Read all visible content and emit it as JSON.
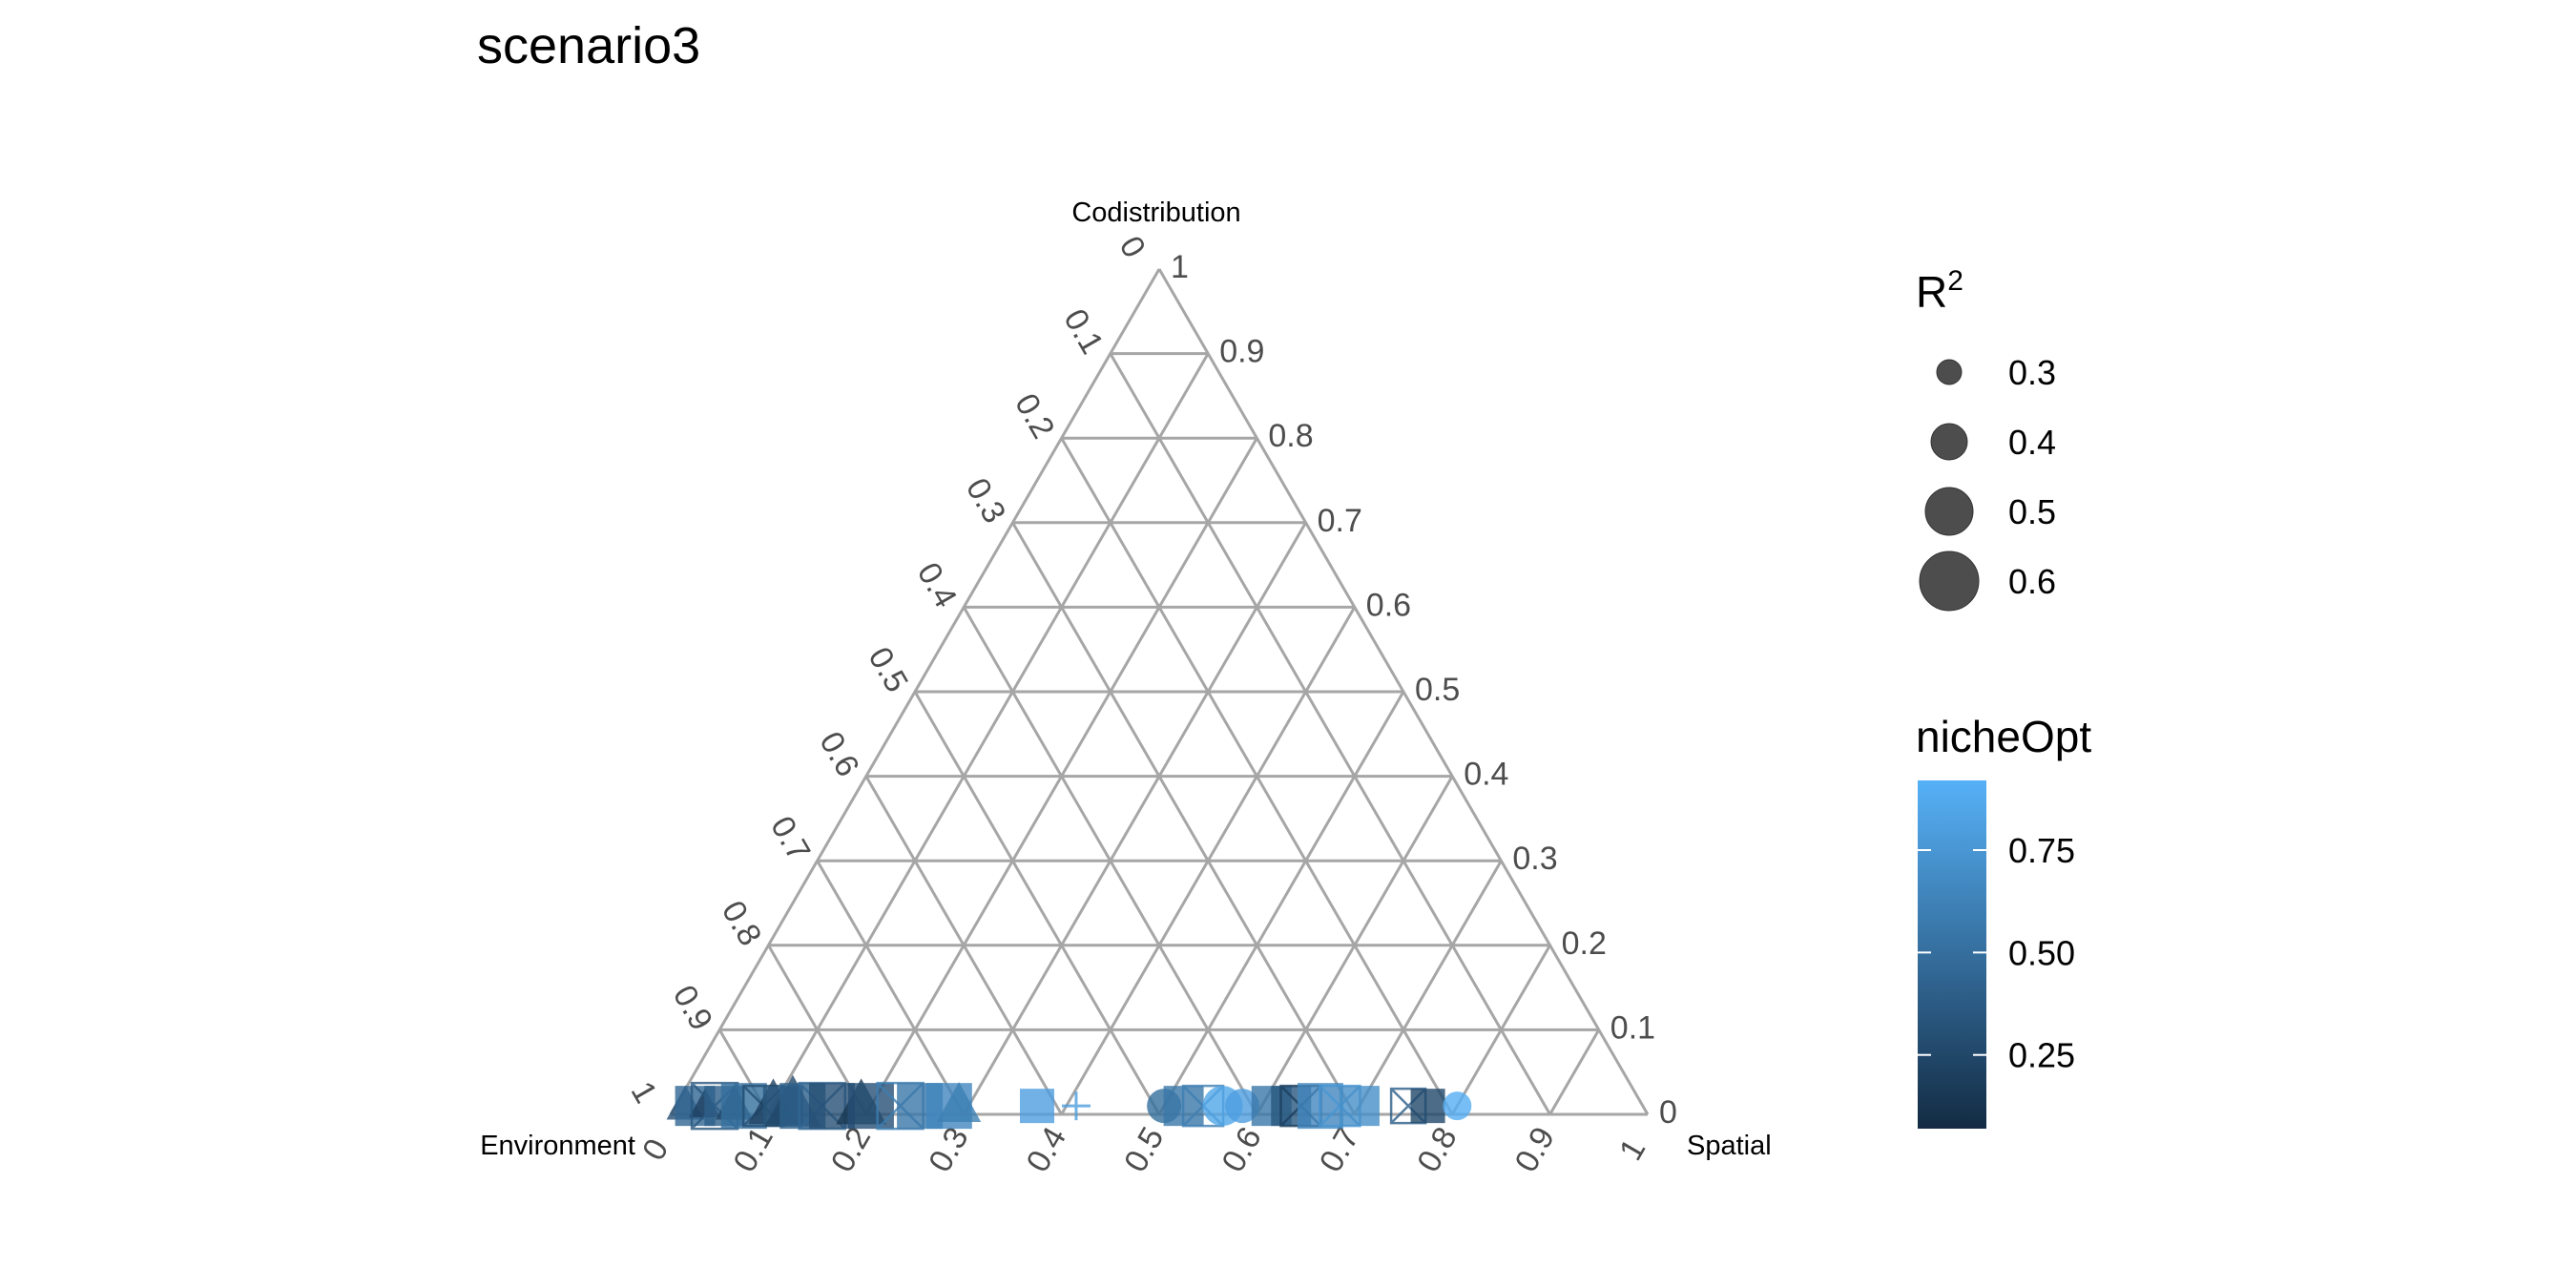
{
  "chart_data": {
    "type": "scatter",
    "subtype": "ternary",
    "title": "scenario3",
    "axes": {
      "top": "Codistribution",
      "left": "Environment",
      "right": "Spatial"
    },
    "ticks": [
      "0",
      "0.1",
      "0.2",
      "0.3",
      "0.4",
      "0.5",
      "0.6",
      "0.7",
      "0.8",
      "0.9",
      "1"
    ],
    "grid": true,
    "legend_position": "right",
    "size_legend": {
      "title": "R",
      "title_superscript": "2",
      "values": [
        0.3,
        0.4,
        0.5,
        0.6
      ],
      "labels": [
        "0.3",
        "0.4",
        "0.5",
        "0.6"
      ]
    },
    "color_legend": {
      "title": "nicheOpt",
      "range": [
        0.07,
        0.92
      ],
      "breaks": [
        0.25,
        0.5,
        0.75
      ],
      "labels": [
        "0.25",
        "0.50",
        "0.75"
      ],
      "low_color": "#132B43",
      "high_color": "#56B1F7"
    },
    "points": [
      {
        "spatial": 0.01,
        "env": 0.99,
        "codist": 0.01,
        "nicheOpt": 0.3,
        "r2": 0.45,
        "shape": "triangle"
      },
      {
        "spatial": 0.02,
        "env": 0.97,
        "codist": 0.01,
        "nicheOpt": 0.45,
        "r2": 0.5,
        "shape": "square"
      },
      {
        "spatial": 0.03,
        "env": 0.96,
        "codist": 0.01,
        "nicheOpt": 0.2,
        "r2": 0.4,
        "shape": "triangle"
      },
      {
        "spatial": 0.04,
        "env": 0.95,
        "codist": 0.01,
        "nicheOpt": 0.35,
        "r2": 0.55,
        "shape": "boxx"
      },
      {
        "spatial": 0.05,
        "env": 0.94,
        "codist": 0.01,
        "nicheOpt": 0.4,
        "r2": 0.5,
        "shape": "square"
      },
      {
        "spatial": 0.06,
        "env": 0.93,
        "codist": 0.01,
        "nicheOpt": 0.25,
        "r2": 0.45,
        "shape": "triangle"
      },
      {
        "spatial": 0.07,
        "env": 0.92,
        "codist": 0.01,
        "nicheOpt": 0.5,
        "r2": 0.55,
        "shape": "square"
      },
      {
        "spatial": 0.09,
        "env": 0.9,
        "codist": 0.01,
        "nicheOpt": 0.3,
        "r2": 0.5,
        "shape": "boxx"
      },
      {
        "spatial": 0.1,
        "env": 0.89,
        "codist": 0.01,
        "nicheOpt": 0.2,
        "r2": 0.55,
        "shape": "triangle"
      },
      {
        "spatial": 0.11,
        "env": 0.88,
        "codist": 0.01,
        "nicheOpt": 0.35,
        "r2": 0.5,
        "shape": "square"
      },
      {
        "spatial": 0.12,
        "env": 0.87,
        "codist": 0.01,
        "nicheOpt": 0.25,
        "r2": 0.6,
        "shape": "triangle"
      },
      {
        "spatial": 0.13,
        "env": 0.86,
        "codist": 0.01,
        "nicheOpt": 0.4,
        "r2": 0.55,
        "shape": "square"
      },
      {
        "spatial": 0.15,
        "env": 0.84,
        "codist": 0.01,
        "nicheOpt": 0.45,
        "r2": 0.55,
        "shape": "boxx"
      },
      {
        "spatial": 0.16,
        "env": 0.83,
        "codist": 0.01,
        "nicheOpt": 0.3,
        "r2": 0.55,
        "shape": "square"
      },
      {
        "spatial": 0.19,
        "env": 0.8,
        "codist": 0.01,
        "nicheOpt": 0.15,
        "r2": 0.55,
        "shape": "triangle"
      },
      {
        "spatial": 0.2,
        "env": 0.79,
        "codist": 0.01,
        "nicheOpt": 0.3,
        "r2": 0.55,
        "shape": "square"
      },
      {
        "spatial": 0.23,
        "env": 0.76,
        "codist": 0.01,
        "nicheOpt": 0.6,
        "r2": 0.55,
        "shape": "boxx"
      },
      {
        "spatial": 0.25,
        "env": 0.74,
        "codist": 0.01,
        "nicheOpt": 0.55,
        "r2": 0.55,
        "shape": "square"
      },
      {
        "spatial": 0.28,
        "env": 0.71,
        "codist": 0.01,
        "nicheOpt": 0.65,
        "r2": 0.55,
        "shape": "square"
      },
      {
        "spatial": 0.29,
        "env": 0.7,
        "codist": 0.01,
        "nicheOpt": 0.6,
        "r2": 0.5,
        "shape": "triangle"
      },
      {
        "spatial": 0.37,
        "env": 0.62,
        "codist": 0.01,
        "nicheOpt": 0.8,
        "r2": 0.45,
        "shape": "square"
      },
      {
        "spatial": 0.41,
        "env": 0.58,
        "codist": 0.01,
        "nicheOpt": 0.8,
        "r2": 0.4,
        "shape": "plus"
      },
      {
        "spatial": 0.5,
        "env": 0.49,
        "codist": 0.01,
        "nicheOpt": 0.5,
        "r2": 0.45,
        "shape": "circle"
      },
      {
        "spatial": 0.52,
        "env": 0.47,
        "codist": 0.01,
        "nicheOpt": 0.55,
        "r2": 0.5,
        "shape": "square"
      },
      {
        "spatial": 0.54,
        "env": 0.45,
        "codist": 0.01,
        "nicheOpt": 0.6,
        "r2": 0.5,
        "shape": "boxx"
      },
      {
        "spatial": 0.56,
        "env": 0.43,
        "codist": 0.01,
        "nicheOpt": 0.85,
        "r2": 0.5,
        "shape": "circle"
      },
      {
        "spatial": 0.58,
        "env": 0.41,
        "codist": 0.01,
        "nicheOpt": 0.8,
        "r2": 0.45,
        "shape": "circle"
      },
      {
        "spatial": 0.61,
        "env": 0.38,
        "codist": 0.01,
        "nicheOpt": 0.55,
        "r2": 0.5,
        "shape": "square"
      },
      {
        "spatial": 0.63,
        "env": 0.36,
        "codist": 0.01,
        "nicheOpt": 0.35,
        "r2": 0.5,
        "shape": "square"
      },
      {
        "spatial": 0.64,
        "env": 0.35,
        "codist": 0.01,
        "nicheOpt": 0.2,
        "r2": 0.5,
        "shape": "boxx"
      },
      {
        "spatial": 0.66,
        "env": 0.33,
        "codist": 0.01,
        "nicheOpt": 0.65,
        "r2": 0.55,
        "shape": "square"
      },
      {
        "spatial": 0.68,
        "env": 0.31,
        "codist": 0.01,
        "nicheOpt": 0.75,
        "r2": 0.5,
        "shape": "boxx"
      },
      {
        "spatial": 0.7,
        "env": 0.29,
        "codist": 0.01,
        "nicheOpt": 0.7,
        "r2": 0.5,
        "shape": "square"
      },
      {
        "spatial": 0.75,
        "env": 0.24,
        "codist": 0.01,
        "nicheOpt": 0.4,
        "r2": 0.45,
        "shape": "boxx"
      },
      {
        "spatial": 0.77,
        "env": 0.22,
        "codist": 0.01,
        "nicheOpt": 0.25,
        "r2": 0.45,
        "shape": "square"
      },
      {
        "spatial": 0.8,
        "env": 0.19,
        "codist": 0.01,
        "nicheOpt": 0.9,
        "r2": 0.4,
        "shape": "circle"
      }
    ]
  }
}
